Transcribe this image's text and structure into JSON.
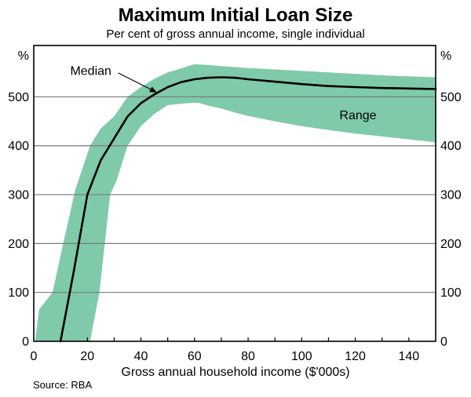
{
  "header": {
    "title": "Maximum Initial Loan Size",
    "subtitle": "Per cent of gross annual income, single individual"
  },
  "footer": {
    "source": "Source: RBA"
  },
  "chart_data": {
    "type": "area",
    "title": "Maximum Initial Loan Size",
    "subtitle": "Per cent of gross annual income, single individual",
    "xlabel": "Gross annual household income ($'000s)",
    "y_unit_label": "%",
    "xlim": [
      0,
      150
    ],
    "ylim": [
      0,
      605
    ],
    "x_tick_labels": [
      0,
      20,
      40,
      60,
      80,
      100,
      120,
      140
    ],
    "x_minor_tick_step": 10,
    "y_ticks": [
      0,
      100,
      200,
      300,
      400,
      500
    ],
    "grid": "horizontal",
    "legend_position": "none",
    "colors": {
      "band": "#7fcaa9",
      "median": "#000000",
      "gridline": "#7a7a7a",
      "frame": "#000000"
    },
    "series": [
      {
        "name": "Median",
        "type": "line",
        "x": [
          10,
          15,
          20,
          25,
          30,
          35,
          40,
          45,
          50,
          55,
          60,
          65,
          70,
          75,
          80,
          90,
          100,
          110,
          120,
          130,
          140,
          150
        ],
        "y": [
          0,
          145,
          300,
          370,
          415,
          460,
          487,
          505,
          520,
          530,
          536,
          539,
          540,
          539,
          536,
          531,
          526,
          522,
          520,
          518,
          517,
          516
        ]
      },
      {
        "name": "Range",
        "type": "band",
        "upper_x": [
          0.5,
          2,
          7,
          11,
          15.5,
          21,
          25,
          30,
          35,
          40,
          45,
          50,
          55,
          60,
          65,
          70,
          75,
          80,
          90,
          100,
          110,
          120,
          130,
          140,
          150
        ],
        "upper_y": [
          0,
          65,
          100,
          200,
          310,
          400,
          435,
          460,
          500,
          520,
          537,
          550,
          558,
          567,
          565,
          563,
          561,
          559,
          556,
          553,
          550,
          547,
          544,
          542,
          540
        ],
        "lower_x": [
          21,
          24.5,
          26.5,
          28.5,
          31,
          35,
          40,
          45,
          50,
          55,
          60,
          62,
          65,
          70,
          75,
          80,
          90,
          100,
          110,
          120,
          130,
          140,
          150
        ],
        "lower_y": [
          0,
          100,
          200,
          300,
          330,
          400,
          440,
          465,
          483,
          486,
          488,
          487,
          482,
          476,
          468,
          461,
          450,
          440,
          432,
          425,
          419,
          413,
          407
        ]
      }
    ],
    "annotations": [
      {
        "text": "Median",
        "x": 21.3,
        "y": 553,
        "arrow_from": [
          31.5,
          549
        ],
        "arrow_to": [
          45.6,
          510
        ]
      },
      {
        "text": "Range",
        "x": 121,
        "y": 462
      }
    ]
  }
}
